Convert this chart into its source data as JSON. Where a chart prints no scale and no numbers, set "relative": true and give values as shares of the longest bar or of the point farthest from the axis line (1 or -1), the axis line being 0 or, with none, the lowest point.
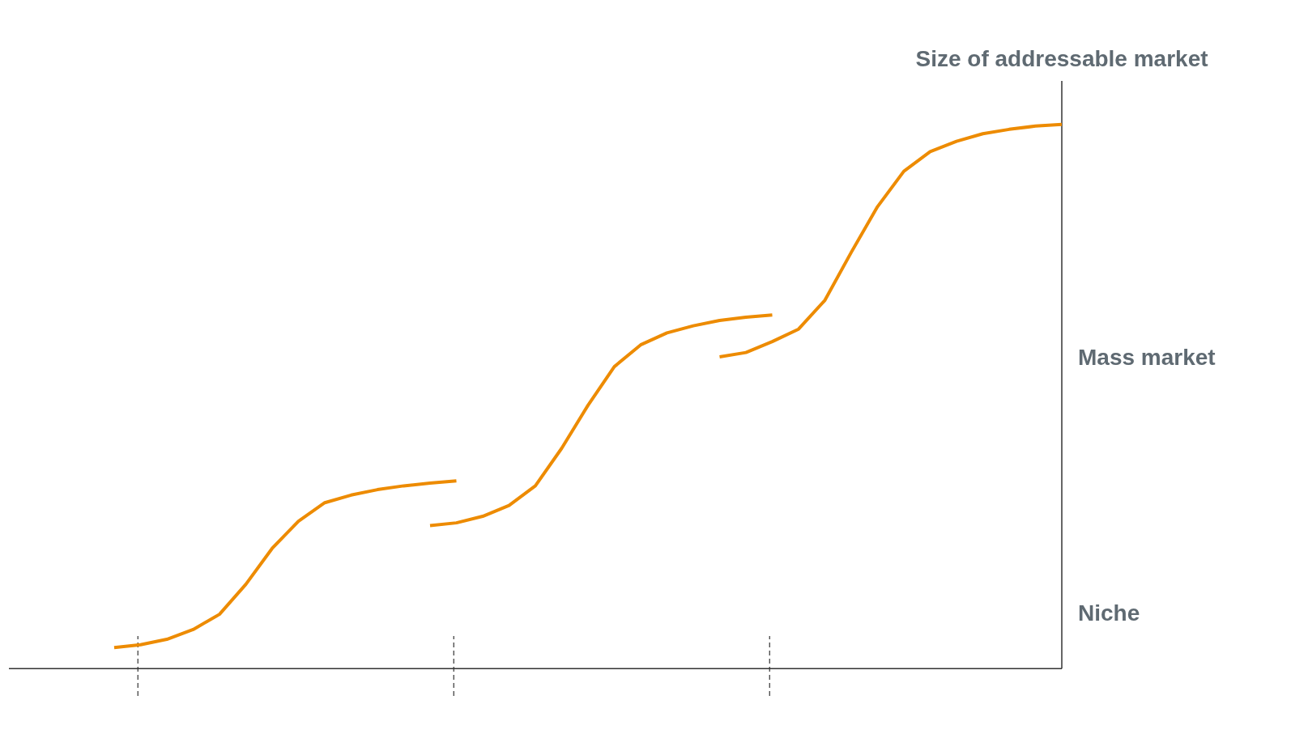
{
  "chart_data": {
    "type": "line",
    "relative": true,
    "ylabel": "Size of addressable market",
    "line_style": "solid",
    "marker": "none",
    "categories": [
      null,
      null,
      null,
      null,
      null,
      null,
      null,
      null,
      null,
      null,
      null,
      null,
      null,
      null,
      null,
      null,
      null,
      null,
      null,
      null,
      null,
      null,
      null,
      null,
      null,
      null,
      null,
      null,
      null,
      null,
      null,
      null,
      null,
      null,
      null,
      null,
      null,
      null,
      null,
      null,
      null
    ],
    "annotations": [
      "Niche",
      "Mass market"
    ],
    "series": [
      {
        "color": "#ed8b00",
        "values": [
          null,
          null,
          null,
          null,
          0.039,
          0.044,
          0.054,
          0.072,
          0.1,
          0.155,
          0.221,
          0.271,
          0.305,
          0.319,
          0.329,
          0.336,
          0.341,
          0.345,
          null,
          null,
          null,
          null,
          null,
          null,
          null,
          null,
          null,
          null,
          null,
          null,
          null,
          null,
          null,
          null,
          null,
          null,
          null,
          null,
          null,
          null,
          null
        ]
      },
      {
        "color": "#ed8b00",
        "values": [
          null,
          null,
          null,
          null,
          null,
          null,
          null,
          null,
          null,
          null,
          null,
          null,
          null,
          null,
          null,
          null,
          0.263,
          0.268,
          0.28,
          0.3,
          0.336,
          0.405,
          0.484,
          0.555,
          0.595,
          0.617,
          0.63,
          0.64,
          0.646,
          0.65,
          null,
          null,
          null,
          null,
          null,
          null,
          null,
          null,
          null,
          null,
          null
        ]
      },
      {
        "color": "#ed8b00",
        "values": [
          null,
          null,
          null,
          null,
          null,
          null,
          null,
          null,
          null,
          null,
          null,
          null,
          null,
          null,
          null,
          null,
          null,
          null,
          null,
          null,
          null,
          null,
          null,
          null,
          null,
          null,
          null,
          0.573,
          0.581,
          0.601,
          0.624,
          0.677,
          0.765,
          0.849,
          0.914,
          0.95,
          0.969,
          0.983,
          0.991,
          0.997,
          1.0
        ]
      }
    ]
  }
}
